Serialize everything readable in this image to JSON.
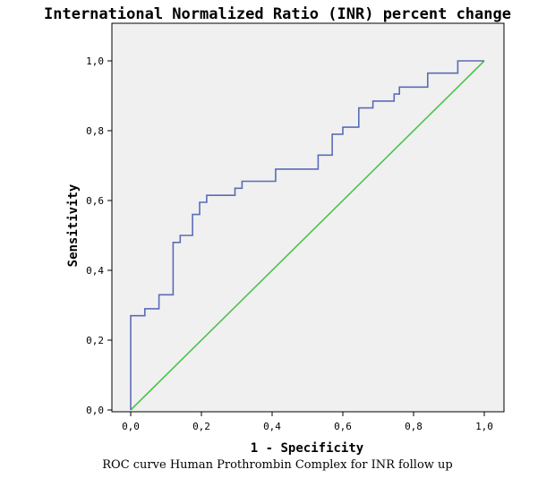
{
  "colors": {
    "plot_bg": "#f0f0f0",
    "roc": "#5a6cb8",
    "reference": "#4ec24e",
    "frame": "#000000"
  },
  "chart_data": {
    "type": "line",
    "title": "International Normalized Ratio (INR) percent change",
    "xlabel": "1 - Specificity",
    "ylabel": "Sensitivity",
    "xlim": [
      0,
      1
    ],
    "ylim": [
      0,
      1
    ],
    "x_ticks": [
      "0,0",
      "0,2",
      "0,4",
      "0,6",
      "0,8",
      "1,0"
    ],
    "y_ticks": [
      "0,0",
      "0,2",
      "0,4",
      "0,6",
      "0,8",
      "1,0"
    ],
    "grid": false,
    "series": [
      {
        "line_style": "step",
        "points": [
          [
            0,
            0
          ],
          [
            0,
            0.27
          ],
          [
            0.04,
            0.27
          ],
          [
            0.04,
            0.29
          ],
          [
            0.08,
            0.29
          ],
          [
            0.08,
            0.33
          ],
          [
            0.12,
            0.33
          ],
          [
            0.12,
            0.48
          ],
          [
            0.14,
            0.48
          ],
          [
            0.14,
            0.5
          ],
          [
            0.175,
            0.5
          ],
          [
            0.175,
            0.56
          ],
          [
            0.195,
            0.56
          ],
          [
            0.195,
            0.595
          ],
          [
            0.215,
            0.595
          ],
          [
            0.215,
            0.615
          ],
          [
            0.295,
            0.615
          ],
          [
            0.295,
            0.635
          ],
          [
            0.315,
            0.635
          ],
          [
            0.315,
            0.655
          ],
          [
            0.41,
            0.655
          ],
          [
            0.41,
            0.69
          ],
          [
            0.53,
            0.69
          ],
          [
            0.53,
            0.73
          ],
          [
            0.57,
            0.73
          ],
          [
            0.57,
            0.79
          ],
          [
            0.6,
            0.79
          ],
          [
            0.6,
            0.81
          ],
          [
            0.645,
            0.81
          ],
          [
            0.645,
            0.865
          ],
          [
            0.685,
            0.865
          ],
          [
            0.685,
            0.885
          ],
          [
            0.745,
            0.885
          ],
          [
            0.745,
            0.905
          ],
          [
            0.76,
            0.905
          ],
          [
            0.76,
            0.925
          ],
          [
            0.84,
            0.925
          ],
          [
            0.84,
            0.965
          ],
          [
            0.925,
            0.965
          ],
          [
            0.925,
            1.0
          ],
          [
            1.0,
            1.0
          ]
        ]
      },
      {
        "line_style": "reference",
        "points": [
          [
            0,
            0
          ],
          [
            1,
            1
          ]
        ]
      }
    ]
  },
  "caption": "ROC curve Human Prothrombin Complex for INR follow up"
}
